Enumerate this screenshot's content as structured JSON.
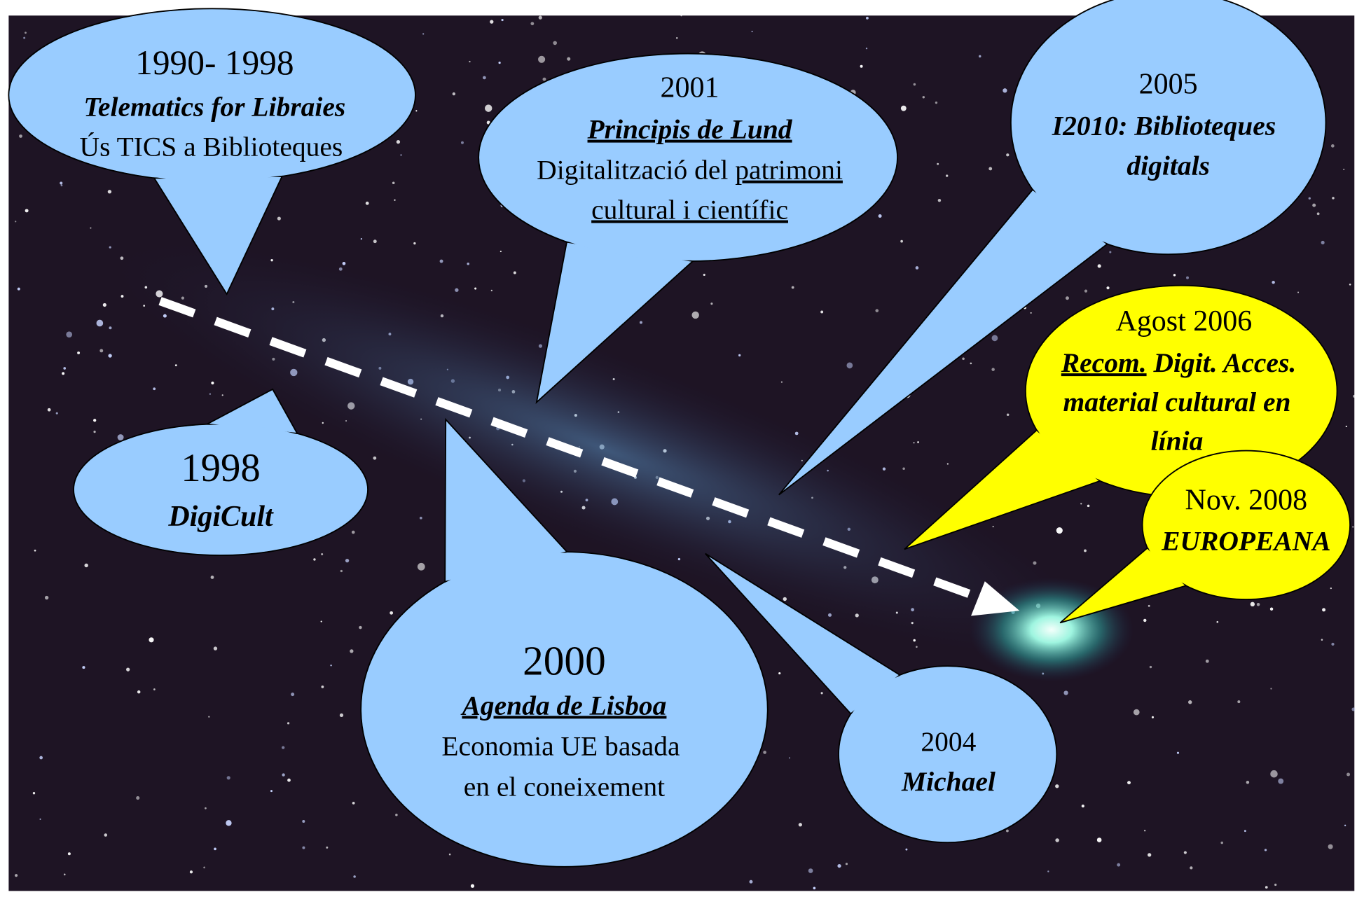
{
  "callouts": [
    {
      "lines": [
        "1990- 1998",
        "Telematics for Libraies",
        "Ús TICS a Biblioteques"
      ]
    },
    {
      "lines": [
        "2001",
        "Principis de Lund",
        "Digitalització del",
        "patrimoni",
        "cultural i científic"
      ]
    },
    {
      "lines": [
        "2005",
        "I2010: Biblioteques",
        "digitals"
      ]
    },
    {
      "lines": [
        "Agost 2006",
        "Recom.",
        "Digit. Acces.",
        "material cultural en",
        "línia"
      ]
    },
    {
      "lines": [
        "Nov. 2008",
        "EUROPEANA"
      ]
    },
    {
      "lines": [
        "1998",
        "DigiCult"
      ]
    },
    {
      "lines": [
        "2000",
        "Agenda de Lisboa",
        "Economia UE basada",
        "en el coneixement"
      ]
    },
    {
      "lines": [
        "2004",
        "Michael"
      ]
    }
  ]
}
